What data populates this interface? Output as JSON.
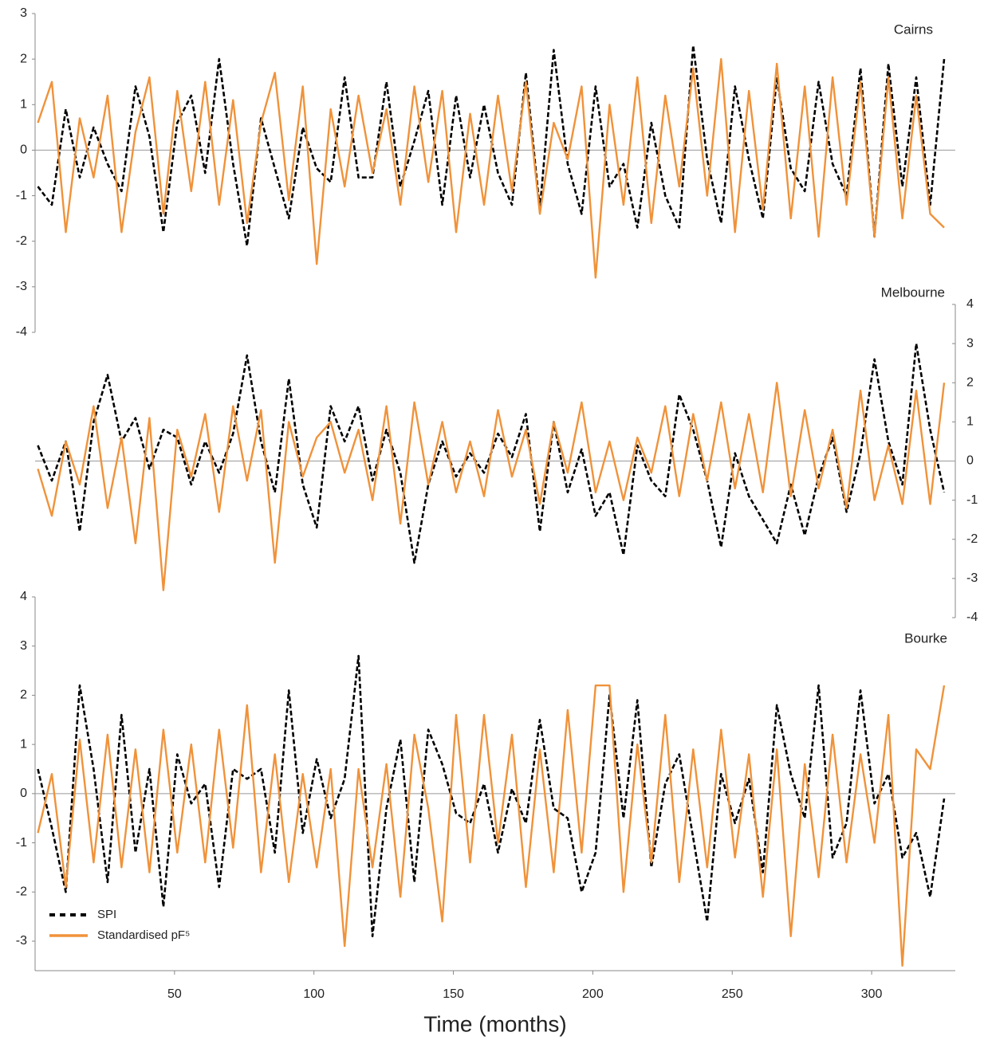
{
  "chart_data": [
    {
      "type": "line",
      "title": "Cairns",
      "y_axis": "left",
      "x": [
        1,
        6,
        11,
        16,
        21,
        26,
        31,
        36,
        41,
        46,
        51,
        56,
        61,
        66,
        71,
        76,
        81,
        86,
        91,
        96,
        101,
        106,
        111,
        116,
        121,
        126,
        131,
        136,
        141,
        146,
        151,
        156,
        161,
        166,
        171,
        176,
        181,
        186,
        191,
        196,
        201,
        206,
        211,
        216,
        221,
        226,
        231,
        236,
        241,
        246,
        251,
        256,
        261,
        266,
        271,
        276,
        281,
        286,
        291,
        296,
        301,
        306,
        311,
        316,
        321,
        326
      ],
      "xlim": [
        0,
        330
      ],
      "ylim": [
        -4,
        3
      ],
      "yticks": [
        3,
        2,
        1,
        0,
        -1,
        -2,
        -3,
        -4
      ],
      "series": [
        {
          "color": "#000000",
          "dash": true,
          "values": [
            -0.8,
            -1.2,
            0.9,
            -0.6,
            0.5,
            -0.3,
            -0.9,
            1.4,
            0.3,
            -1.8,
            0.6,
            1.2,
            -0.5,
            2.0,
            -0.3,
            -2.1,
            0.7,
            -0.4,
            -1.5,
            0.5,
            -0.4,
            -0.7,
            1.6,
            -0.6,
            -0.6,
            1.5,
            -0.8,
            0.2,
            1.3,
            -1.2,
            1.2,
            -0.6,
            1.0,
            -0.5,
            -1.2,
            1.7,
            -1.3,
            2.2,
            -0.3,
            -1.4,
            1.4,
            -0.8,
            -0.3,
            -1.7,
            0.6,
            -1.0,
            -1.7,
            2.3,
            -0.2,
            -1.6,
            1.4,
            -0.2,
            -1.5,
            1.6,
            -0.4,
            -0.9,
            1.5,
            -0.3,
            -1.0,
            1.8,
            -1.9,
            1.9,
            -0.8,
            1.6,
            -1.2,
            2.0
          ]
        },
        {
          "color": "#f0923a",
          "dash": false,
          "values": [
            0.6,
            1.5,
            -1.8,
            0.7,
            -0.6,
            1.2,
            -1.8,
            0.4,
            1.6,
            -1.4,
            1.3,
            -0.9,
            1.5,
            -1.2,
            1.1,
            -1.6,
            0.6,
            1.7,
            -1.1,
            1.4,
            -2.5,
            0.9,
            -0.8,
            1.2,
            -0.5,
            0.9,
            -1.2,
            1.4,
            -0.7,
            1.3,
            -1.8,
            0.8,
            -1.2,
            1.2,
            -0.9,
            1.5,
            -1.4,
            0.6,
            -0.2,
            1.4,
            -2.8,
            1.0,
            -1.2,
            1.6,
            -1.6,
            1.2,
            -0.8,
            1.8,
            -1.0,
            2.0,
            -1.8,
            1.3,
            -1.3,
            1.9,
            -1.5,
            1.4,
            -1.9,
            1.6,
            -1.2,
            1.5,
            -1.9,
            1.6,
            -1.5,
            1.2,
            -1.4,
            -1.7
          ]
        }
      ]
    },
    {
      "type": "line",
      "title": "Melbourne",
      "y_axis": "right",
      "x": [
        1,
        6,
        11,
        16,
        21,
        26,
        31,
        36,
        41,
        46,
        51,
        56,
        61,
        66,
        71,
        76,
        81,
        86,
        91,
        96,
        101,
        106,
        111,
        116,
        121,
        126,
        131,
        136,
        141,
        146,
        151,
        156,
        161,
        166,
        171,
        176,
        181,
        186,
        191,
        196,
        201,
        206,
        211,
        216,
        221,
        226,
        231,
        236,
        241,
        246,
        251,
        256,
        261,
        266,
        271,
        276,
        281,
        286,
        291,
        296,
        301,
        306,
        311,
        316,
        321,
        326
      ],
      "xlim": [
        0,
        330
      ],
      "ylim": [
        -4,
        4
      ],
      "yticks": [
        4,
        3,
        2,
        1,
        0,
        -1,
        -2,
        -3,
        -4
      ],
      "series": [
        {
          "color": "#000000",
          "dash": true,
          "values": [
            0.4,
            -0.5,
            0.5,
            -1.8,
            1.0,
            2.2,
            0.5,
            1.1,
            -0.2,
            0.8,
            0.6,
            -0.6,
            0.5,
            -0.3,
            0.7,
            2.7,
            0.5,
            -0.8,
            2.1,
            -0.6,
            -1.7,
            1.4,
            0.5,
            1.4,
            -0.5,
            0.8,
            -0.3,
            -2.6,
            -0.6,
            0.5,
            -0.4,
            0.2,
            -0.3,
            0.7,
            0.1,
            1.2,
            -1.8,
            1.0,
            -0.8,
            0.3,
            -1.4,
            -0.8,
            -2.4,
            0.4,
            -0.5,
            -0.9,
            1.7,
            0.8,
            -0.5,
            -2.2,
            0.2,
            -0.9,
            -1.5,
            -2.1,
            -0.6,
            -1.9,
            -0.4,
            0.6,
            -1.3,
            0.2,
            2.6,
            0.5,
            -0.6,
            3.0,
            0.8,
            -0.8
          ]
        },
        {
          "color": "#f0923a",
          "dash": false,
          "values": [
            -0.2,
            -1.4,
            0.5,
            -0.6,
            1.4,
            -1.2,
            0.6,
            -2.1,
            1.1,
            -3.3,
            0.8,
            -0.4,
            1.2,
            -1.3,
            1.4,
            -0.5,
            1.3,
            -2.6,
            1.0,
            -0.4,
            0.6,
            1.0,
            -0.3,
            0.8,
            -1.0,
            1.4,
            -1.6,
            1.5,
            -0.6,
            1.0,
            -0.8,
            0.5,
            -0.9,
            1.3,
            -0.4,
            0.8,
            -1.1,
            1.0,
            -0.3,
            1.5,
            -0.8,
            0.5,
            -1.0,
            0.6,
            -0.3,
            1.4,
            -0.9,
            1.2,
            -0.5,
            1.5,
            -0.7,
            1.2,
            -0.8,
            2.0,
            -0.9,
            1.3,
            -0.7,
            0.8,
            -1.2,
            1.8,
            -1.0,
            0.4,
            -1.1,
            1.8,
            -1.1,
            2.0
          ]
        }
      ]
    },
    {
      "type": "line",
      "title": "Bourke",
      "y_axis": "left",
      "xlabel": "Time (months)",
      "legend": "lower left",
      "x": [
        1,
        6,
        11,
        16,
        21,
        26,
        31,
        36,
        41,
        46,
        51,
        56,
        61,
        66,
        71,
        76,
        81,
        86,
        91,
        96,
        101,
        106,
        111,
        116,
        121,
        126,
        131,
        136,
        141,
        146,
        151,
        156,
        161,
        166,
        171,
        176,
        181,
        186,
        191,
        196,
        201,
        206,
        211,
        216,
        221,
        226,
        231,
        236,
        241,
        246,
        251,
        256,
        261,
        266,
        271,
        276,
        281,
        286,
        291,
        296,
        301,
        306,
        311,
        316,
        321,
        326
      ],
      "xlim": [
        0,
        330
      ],
      "xticks": [
        50,
        100,
        150,
        200,
        250,
        300
      ],
      "ylim": [
        -3.6,
        4
      ],
      "yticks": [
        4,
        3,
        2,
        1,
        0,
        -1,
        -2,
        -3
      ],
      "series": [
        {
          "name": "SPI",
          "color": "#000000",
          "dash": true,
          "values": [
            0.5,
            -0.7,
            -2.0,
            2.2,
            0.5,
            -1.8,
            1.6,
            -1.2,
            0.5,
            -2.3,
            0.8,
            -0.2,
            0.2,
            -1.9,
            0.5,
            0.3,
            0.5,
            -1.2,
            2.1,
            -0.8,
            0.7,
            -0.5,
            0.3,
            2.8,
            -2.9,
            -0.3,
            1.1,
            -1.8,
            1.3,
            0.6,
            -0.4,
            -0.6,
            0.2,
            -1.2,
            0.1,
            -0.6,
            1.5,
            -0.3,
            -0.5,
            -2.0,
            -1.2,
            2.0,
            -0.5,
            1.9,
            -1.5,
            0.2,
            0.8,
            -0.9,
            -2.6,
            0.4,
            -0.6,
            0.3,
            -1.6,
            1.8,
            0.4,
            -0.5,
            2.2,
            -1.3,
            -0.6,
            2.1,
            -0.2,
            0.4,
            -1.3,
            -0.8,
            -2.1,
            -0.1
          ]
        },
        {
          "name": "Standardised pF⁵",
          "color": "#f0923a",
          "dash": false,
          "values": [
            -0.8,
            0.4,
            -1.9,
            1.1,
            -1.4,
            1.2,
            -1.5,
            0.9,
            -1.6,
            1.3,
            -1.2,
            1.0,
            -1.4,
            1.3,
            -1.1,
            1.8,
            -1.6,
            0.8,
            -1.8,
            0.4,
            -1.5,
            0.5,
            -3.1,
            0.5,
            -1.5,
            0.6,
            -2.1,
            1.2,
            -0.3,
            -2.6,
            1.6,
            -1.4,
            1.6,
            -1.0,
            1.2,
            -1.9,
            0.9,
            -1.6,
            1.7,
            -1.2,
            2.2,
            2.2,
            -2.0,
            1.0,
            -1.4,
            1.6,
            -1.8,
            0.9,
            -1.5,
            1.3,
            -1.3,
            0.8,
            -2.1,
            0.9,
            -2.9,
            0.6,
            -1.7,
            1.2,
            -1.4,
            0.8,
            -1.0,
            1.6,
            -3.5,
            0.9,
            0.5,
            2.2
          ]
        }
      ]
    }
  ]
}
